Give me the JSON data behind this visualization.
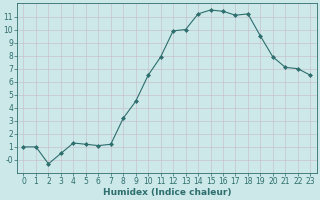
{
  "x": [
    0,
    1,
    2,
    3,
    4,
    5,
    6,
    7,
    8,
    9,
    10,
    11,
    12,
    13,
    14,
    15,
    16,
    17,
    18,
    19,
    20,
    21,
    22,
    23
  ],
  "y": [
    1,
    1,
    -0.3,
    0.5,
    1.3,
    1.2,
    1.1,
    1.2,
    3.2,
    4.5,
    6.5,
    7.9,
    9.9,
    10.0,
    11.2,
    11.5,
    11.4,
    11.1,
    11.2,
    9.5,
    7.9,
    7.1,
    7.0,
    6.5
  ],
  "line_color": "#2e6e6e",
  "marker": "D",
  "marker_size": 2.0,
  "bg_color": "#cce8e8",
  "grid_color": "#b8d8d8",
  "xlabel": "Humidex (Indice chaleur)",
  "xlim": [
    -0.5,
    23.5
  ],
  "ylim": [
    -1.0,
    12.0
  ],
  "yticks": [
    0,
    1,
    2,
    3,
    4,
    5,
    6,
    7,
    8,
    9,
    10,
    11
  ],
  "ytick_labels": [
    "-0",
    "1",
    "2",
    "3",
    "4",
    "5",
    "6",
    "7",
    "8",
    "9",
    "10",
    "11"
  ],
  "xticks": [
    0,
    1,
    2,
    3,
    4,
    5,
    6,
    7,
    8,
    9,
    10,
    11,
    12,
    13,
    14,
    15,
    16,
    17,
    18,
    19,
    20,
    21,
    22,
    23
  ],
  "font_color": "#2e6e6e",
  "tick_fontsize": 5.5,
  "label_fontsize": 6.5
}
